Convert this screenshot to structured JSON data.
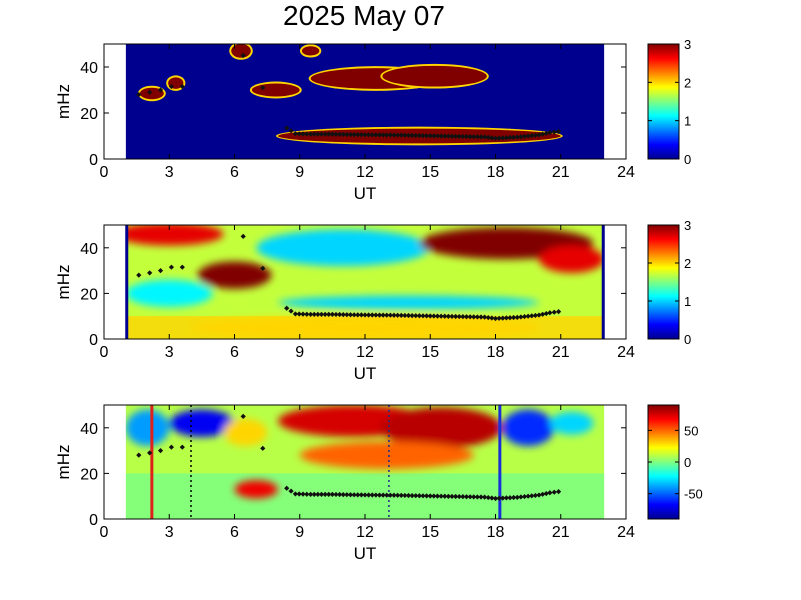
{
  "figure": {
    "title": "2025 May 07"
  },
  "colormap_jet": [
    "#00008f",
    "#0000ff",
    "#0080ff",
    "#00ffff",
    "#80ff80",
    "#ffff00",
    "#ff8000",
    "#ff0000",
    "#800000"
  ],
  "chart_data": [
    {
      "type": "heatmap",
      "panel": "top",
      "title": "",
      "xlabel": "UT",
      "ylabel": "mHz",
      "xlim": [
        0,
        24
      ],
      "ylim": [
        0,
        50
      ],
      "xticks": [
        0,
        3,
        6,
        9,
        12,
        15,
        18,
        21,
        24
      ],
      "yticks": [
        0,
        20,
        40
      ],
      "data_extent_ut": [
        1,
        23
      ],
      "colorbar": {
        "min": 0,
        "max": 3,
        "ticks": [
          0,
          1,
          2,
          3
        ]
      },
      "background_value": 0,
      "blobs": [
        {
          "x": 2.2,
          "y": 28.5,
          "rx": 0.55,
          "ry": 2.5,
          "value": 3
        },
        {
          "x": 3.3,
          "y": 33,
          "rx": 0.35,
          "ry": 2.5,
          "value": 3
        },
        {
          "x": 6.3,
          "y": 47,
          "rx": 0.45,
          "ry": 3,
          "value": 3
        },
        {
          "x": 9.5,
          "y": 47,
          "rx": 0.4,
          "ry": 2,
          "value": 3
        },
        {
          "x": 7.9,
          "y": 30,
          "rx": 1.1,
          "ry": 2.8,
          "value": 3
        },
        {
          "x": 12.5,
          "y": 35,
          "rx": 3.0,
          "ry": 4.5,
          "value": 3
        },
        {
          "x": 15.2,
          "y": 36,
          "rx": 2.4,
          "ry": 4.5,
          "value": 3
        },
        {
          "x": 14.5,
          "y": 10,
          "rx": 6.5,
          "ry": 3.2,
          "value": 3
        }
      ],
      "trace_ut": [
        1.6,
        2.1,
        2.6,
        3.1,
        3.6,
        6.4,
        7.3,
        8.4,
        8.8,
        9.5,
        10.5,
        11.5,
        12.5,
        13.5,
        14.5,
        15.5,
        16.5,
        17.5,
        18.0,
        19.0,
        19.5,
        20.0,
        20.5,
        20.9
      ],
      "trace_mhz": [
        28,
        29,
        30,
        31.5,
        31.5,
        45,
        31,
        13.5,
        11,
        10.8,
        10.8,
        10.6,
        10.5,
        10.4,
        10.2,
        10.0,
        9.8,
        9.6,
        9.0,
        9.5,
        10.0,
        10.5,
        11.5,
        12.0
      ]
    },
    {
      "type": "heatmap",
      "panel": "middle",
      "title": "",
      "xlabel": "UT",
      "ylabel": "mHz",
      "xlim": [
        0,
        24
      ],
      "ylim": [
        0,
        50
      ],
      "xticks": [
        0,
        3,
        6,
        9,
        12,
        15,
        18,
        21,
        24
      ],
      "yticks": [
        0,
        20,
        40
      ],
      "data_extent_ut": [
        1,
        23
      ],
      "colorbar": {
        "min": 0,
        "max": 3,
        "ticks": [
          0,
          1,
          2,
          3
        ]
      },
      "background_value": 1.7,
      "blobs": [
        {
          "x": 3.0,
          "y": 46,
          "rx": 2.5,
          "ry": 5,
          "value": 2.7
        },
        {
          "x": 6.0,
          "y": 28,
          "rx": 1.7,
          "ry": 6,
          "value": 3
        },
        {
          "x": 11.0,
          "y": 40,
          "rx": 4.0,
          "ry": 8,
          "value": 1.0
        },
        {
          "x": 3.0,
          "y": 20,
          "rx": 2.0,
          "ry": 6,
          "value": 1.1
        },
        {
          "x": 18.5,
          "y": 42,
          "rx": 4.0,
          "ry": 7,
          "value": 3
        },
        {
          "x": 21.5,
          "y": 35,
          "rx": 1.5,
          "ry": 6,
          "value": 2.7
        },
        {
          "x": 14.0,
          "y": 16,
          "rx": 6.0,
          "ry": 3,
          "value": 1.0
        },
        {
          "x": 12.0,
          "y": 5,
          "rx": 8.0,
          "ry": 5,
          "value": 2.0
        }
      ],
      "trace_ut": [
        1.6,
        2.1,
        2.6,
        3.1,
        3.6,
        6.4,
        7.3,
        8.4,
        8.8,
        9.5,
        10.5,
        11.5,
        12.5,
        13.5,
        14.5,
        15.5,
        16.5,
        17.5,
        18.0,
        19.0,
        19.5,
        20.0,
        20.5,
        20.9
      ],
      "trace_mhz": [
        28,
        29,
        30,
        31.5,
        31.5,
        45,
        31,
        13.5,
        11,
        10.8,
        10.8,
        10.6,
        10.5,
        10.4,
        10.2,
        10.0,
        9.8,
        9.6,
        9.0,
        9.5,
        10.0,
        10.5,
        11.5,
        12.0
      ]
    },
    {
      "type": "heatmap",
      "panel": "bottom",
      "title": "",
      "xlabel": "UT",
      "ylabel": "mHz",
      "xlim": [
        0,
        24
      ],
      "ylim": [
        0,
        50
      ],
      "xticks": [
        0,
        3,
        6,
        9,
        12,
        15,
        18,
        21,
        24
      ],
      "yticks": [
        0,
        20,
        40
      ],
      "data_extent_ut": [
        1,
        23
      ],
      "colorbar": {
        "min": -90,
        "max": 90,
        "ticks": [
          -50,
          0,
          50
        ]
      },
      "background_value": 10,
      "blobs": [
        {
          "x": 4.5,
          "y": 42,
          "rx": 1.5,
          "ry": 6,
          "value": -70
        },
        {
          "x": 2.0,
          "y": 40,
          "rx": 1.0,
          "ry": 8,
          "value": -40
        },
        {
          "x": 6.5,
          "y": 38,
          "rx": 1.0,
          "ry": 6,
          "value": 30
        },
        {
          "x": 11.5,
          "y": 43,
          "rx": 3.5,
          "ry": 7,
          "value": 75
        },
        {
          "x": 15.5,
          "y": 40,
          "rx": 2.8,
          "ry": 9,
          "value": 80
        },
        {
          "x": 19.5,
          "y": 40,
          "rx": 1.2,
          "ry": 8,
          "value": -60
        },
        {
          "x": 21.5,
          "y": 42,
          "rx": 1.0,
          "ry": 5,
          "value": -30
        },
        {
          "x": 7.0,
          "y": 13,
          "rx": 1.0,
          "ry": 4,
          "value": 70
        },
        {
          "x": 13.0,
          "y": 28,
          "rx": 4.0,
          "ry": 6,
          "value": 50
        }
      ],
      "trace_ut": [
        1.6,
        2.1,
        2.6,
        3.1,
        3.6,
        6.4,
        7.3,
        8.4,
        8.8,
        9.5,
        10.5,
        11.5,
        12.5,
        13.5,
        14.5,
        15.5,
        16.5,
        17.5,
        18.0,
        19.0,
        19.5,
        20.0,
        20.5,
        20.9
      ],
      "trace_mhz": [
        28,
        29,
        30,
        31.5,
        31.5,
        45,
        31,
        13.5,
        11,
        10.8,
        10.8,
        10.6,
        10.5,
        10.4,
        10.2,
        10.0,
        9.8,
        9.6,
        9.0,
        9.5,
        10.0,
        10.5,
        11.5,
        12.0
      ],
      "vertical_markers": [
        {
          "ut": 2.2,
          "style": "solid",
          "color": "#e0201b"
        },
        {
          "ut": 4.0,
          "style": "dotted",
          "color": "#000000"
        },
        {
          "ut": 13.1,
          "style": "dotted",
          "color": "#1d2a8a"
        },
        {
          "ut": 18.2,
          "style": "solid",
          "color": "#1a2fd8"
        }
      ]
    }
  ]
}
